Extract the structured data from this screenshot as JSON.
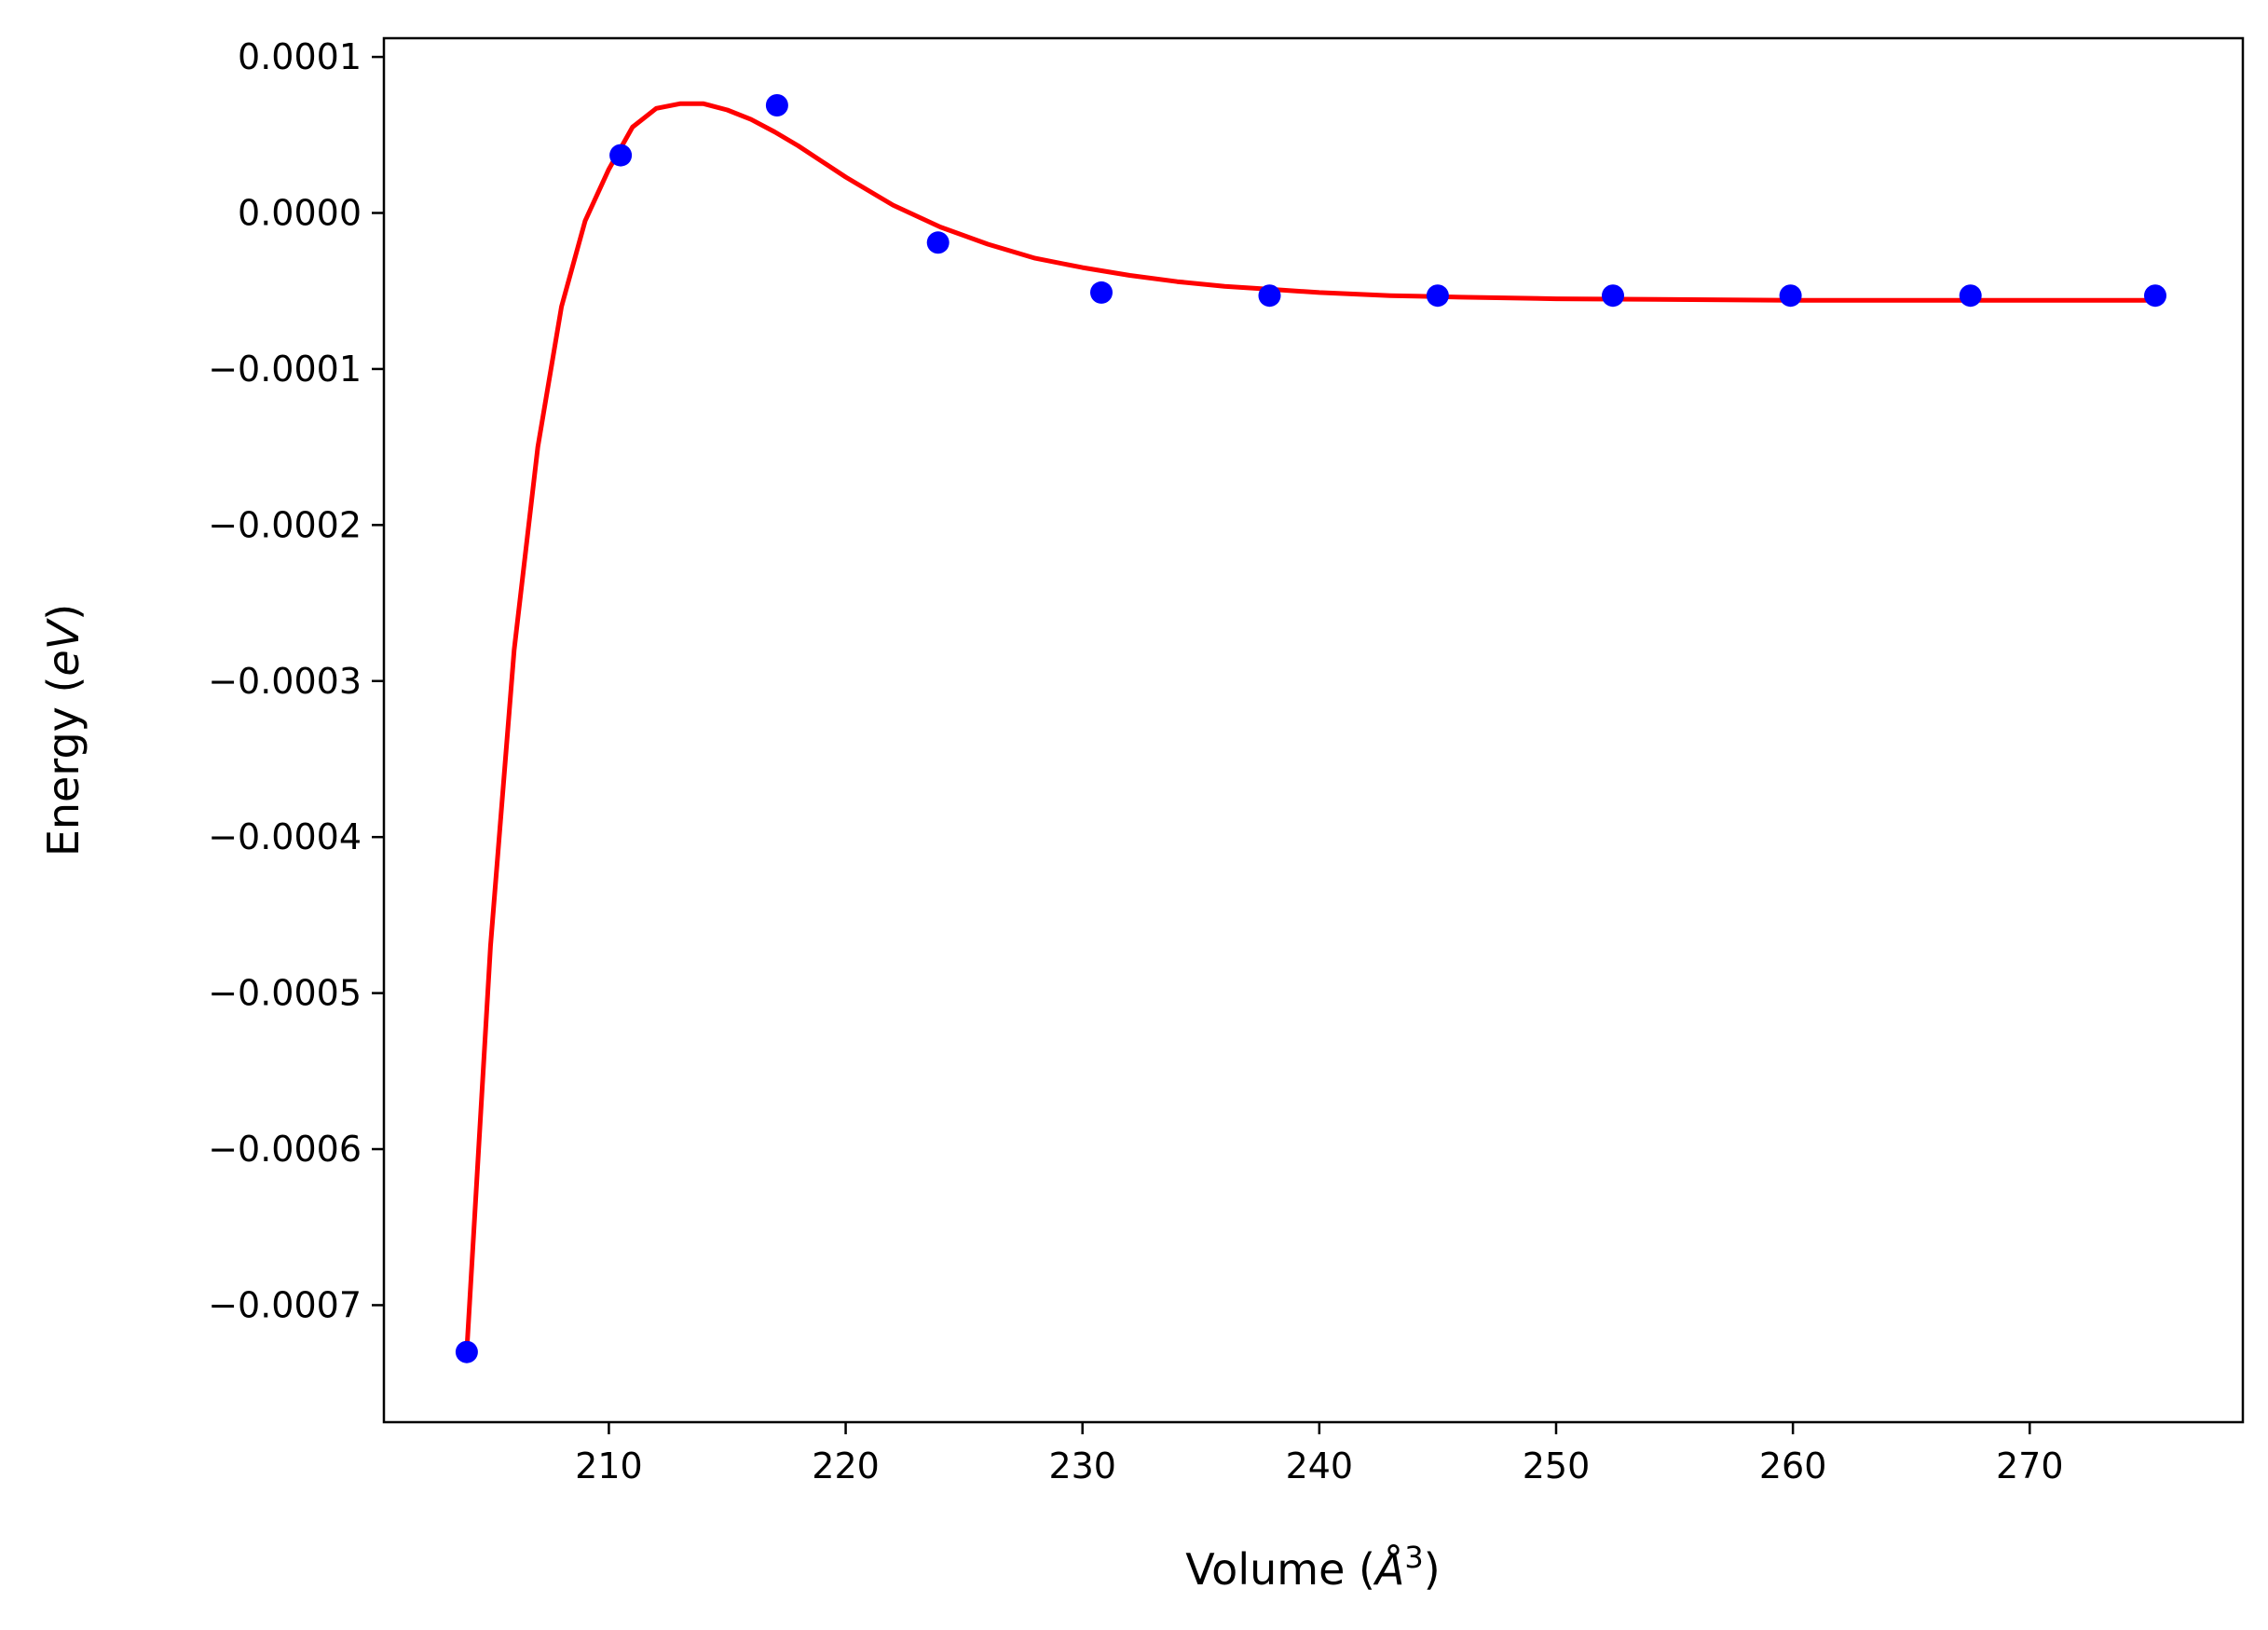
{
  "chart_data": {
    "type": "scatter",
    "title": "",
    "xlabel": {
      "prefix": "Volume (",
      "symbol": "Å",
      "exponent": "3",
      "suffix": ")"
    },
    "ylabel": {
      "prefix": "Energy (",
      "unit": "eV",
      "suffix": ")"
    },
    "xlim": [
      200.5,
      279
    ],
    "ylim": [
      -0.000775,
      0.000112
    ],
    "xticks": [
      210,
      220,
      230,
      240,
      250,
      260,
      270
    ],
    "xtick_labels": [
      "210",
      "220",
      "230",
      "240",
      "250",
      "260",
      "270"
    ],
    "yticks": [
      0.0001,
      0.0,
      -0.0001,
      -0.0002,
      -0.0003,
      -0.0004,
      -0.0005,
      -0.0006,
      -0.0007
    ],
    "ytick_labels": [
      "0.0001",
      "0.0000",
      "−0.0001",
      "−0.0002",
      "−0.0003",
      "−0.0004",
      "−0.0005",
      "−0.0006",
      "−0.0007"
    ],
    "grid": false,
    "legend": "none",
    "series": [
      {
        "kind": "points",
        "color": "#0000ff",
        "x": [
          204.0,
          210.5,
          217.1,
          223.9,
          230.8,
          237.9,
          245.0,
          252.4,
          259.9,
          267.5,
          275.3
        ],
        "y": [
          -0.00073,
          3.7e-05,
          6.9e-05,
          -1.9e-05,
          -5.1e-05,
          -5.3e-05,
          -5.3e-05,
          -5.3e-05,
          -5.3e-05,
          -5.3e-05,
          -5.3e-05
        ]
      },
      {
        "kind": "fit-line",
        "color": "#ff0000",
        "x": [
          204.0,
          205.0,
          206.0,
          207.0,
          208.0,
          209.0,
          210.0,
          211.0,
          212.0,
          213.0,
          214.0,
          215.0,
          216.0,
          217.0,
          218.0,
          219.0,
          220.0,
          222.0,
          224.0,
          226.0,
          228.0,
          230.0,
          232.0,
          234.0,
          236.0,
          238.0,
          240.0,
          243.0,
          246.0,
          250.0,
          255.0,
          260.0,
          265.0,
          270.0,
          275.3
        ],
        "y": [
          -0.00073,
          -0.00047,
          -0.00028,
          -0.00015,
          -6e-05,
          -5e-06,
          2.8e-05,
          5.5e-05,
          6.7e-05,
          7e-05,
          7e-05,
          6.6e-05,
          6e-05,
          5.2e-05,
          4.3e-05,
          3.3e-05,
          2.3e-05,
          5e-06,
          -9e-06,
          -2e-05,
          -2.9e-05,
          -3.5e-05,
          -4e-05,
          -4.4e-05,
          -4.7e-05,
          -4.9e-05,
          -5.1e-05,
          -5.3e-05,
          -5.4e-05,
          -5.5e-05,
          -5.55e-05,
          -5.6e-05,
          -5.6e-05,
          -5.6e-05,
          -5.6e-05
        ]
      }
    ]
  }
}
